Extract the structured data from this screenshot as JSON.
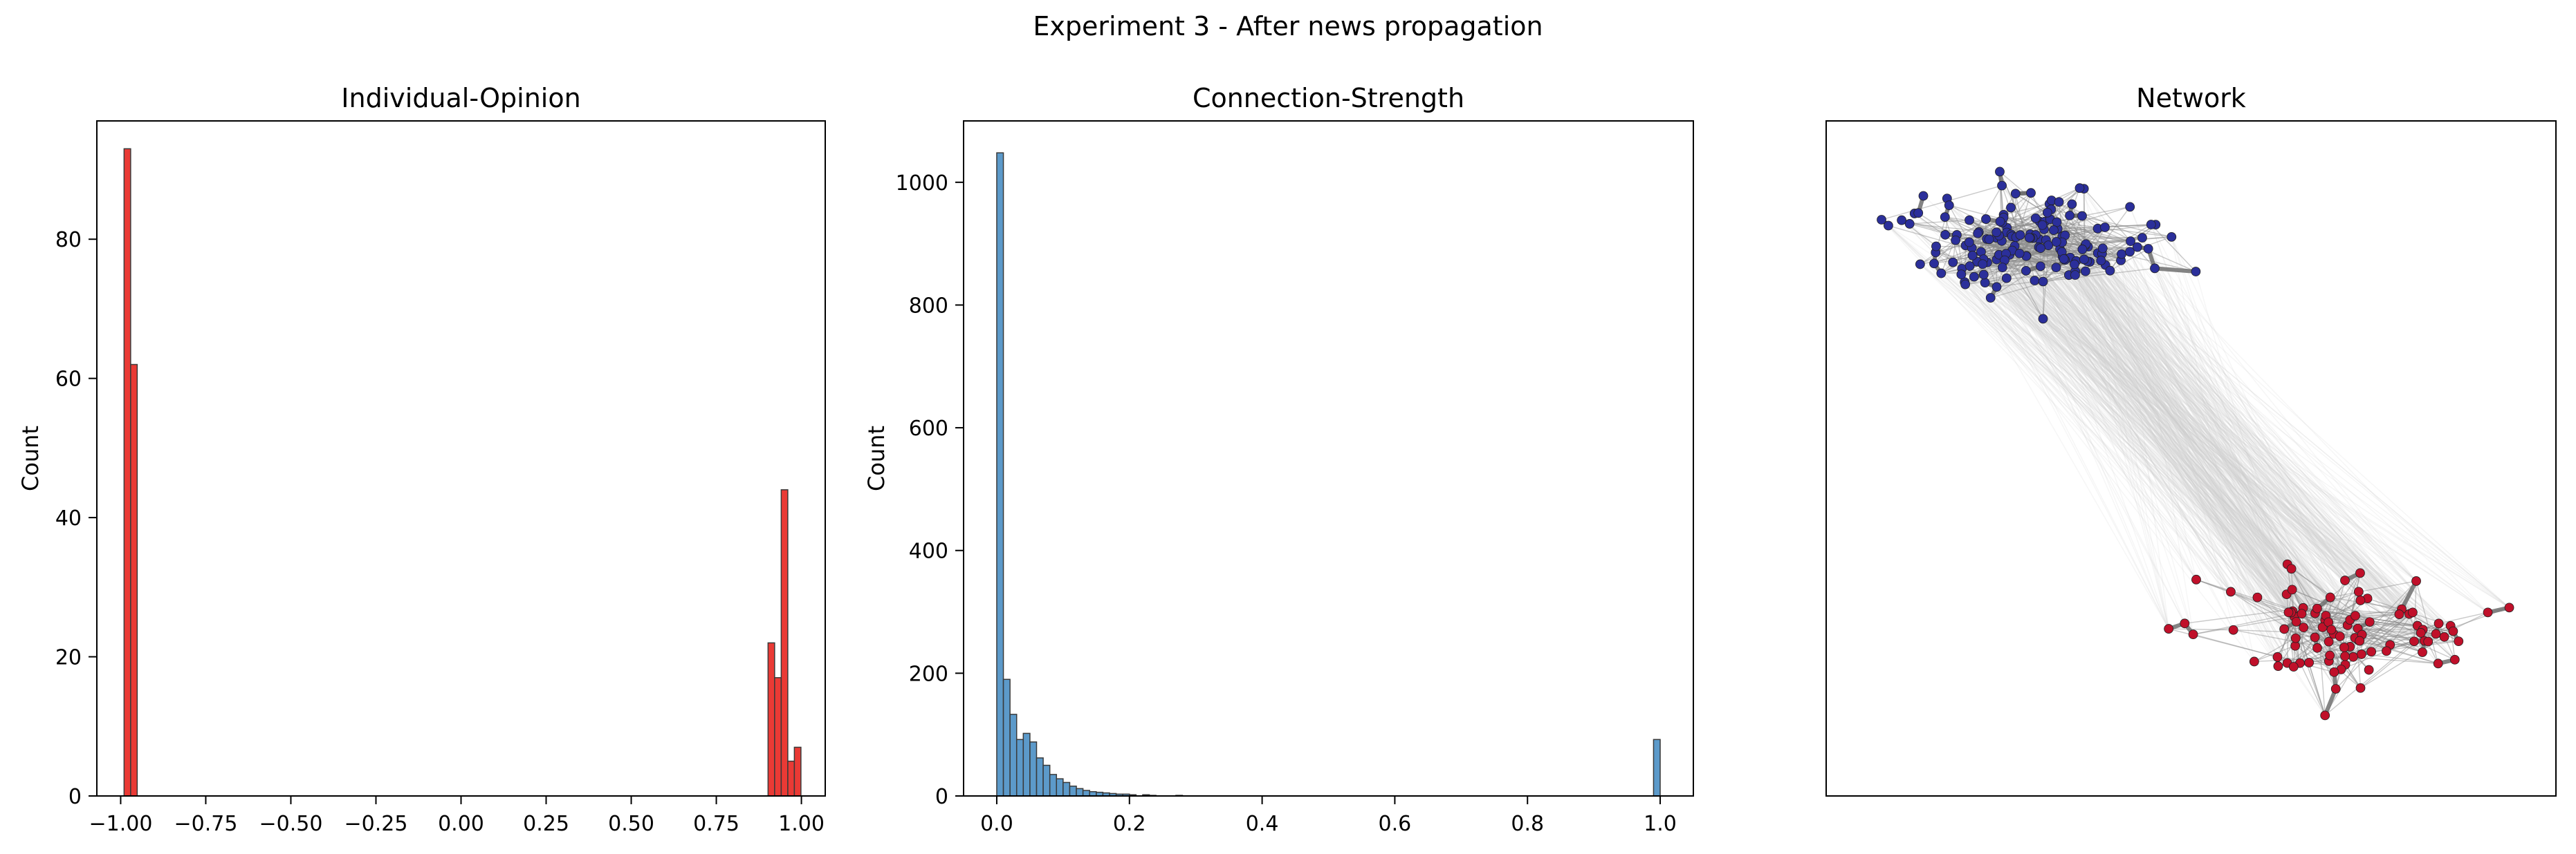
{
  "figure": {
    "title": "Experiment 3 - After news propagation"
  },
  "chart_data": [
    {
      "type": "bar",
      "title": "Individual-Opinion",
      "xlabel": "",
      "ylabel": "Count",
      "color": "#e8251f",
      "xlim": [
        -1.07,
        1.07
      ],
      "ylim": [
        0,
        97
      ],
      "xticks": [
        -1.0,
        -0.75,
        -0.5,
        -0.25,
        0.0,
        0.25,
        0.5,
        0.75,
        1.0
      ],
      "xtick_labels": [
        "−1.00",
        "−0.75",
        "−0.50",
        "−0.25",
        "0.00",
        "0.25",
        "0.50",
        "0.75",
        "1.00"
      ],
      "yticks": [
        0,
        20,
        40,
        60,
        80
      ],
      "ytick_labels": [
        "0",
        "20",
        "40",
        "60",
        "80"
      ],
      "bin_width": 0.0193,
      "bins": [
        {
          "x0": -0.99,
          "count": 93
        },
        {
          "x0": -0.9707,
          "count": 62
        },
        {
          "x0": 0.902,
          "count": 22
        },
        {
          "x0": 0.9213,
          "count": 17
        },
        {
          "x0": 0.9407,
          "count": 44
        },
        {
          "x0": 0.96,
          "count": 5
        },
        {
          "x0": 0.9793,
          "count": 7
        }
      ]
    },
    {
      "type": "bar",
      "title": "Connection-Strength",
      "xlabel": "",
      "ylabel": "Count",
      "color": "#4a8fc4",
      "xlim": [
        -0.05,
        1.05
      ],
      "ylim": [
        0,
        1100
      ],
      "xticks": [
        0.0,
        0.2,
        0.4,
        0.6,
        0.8,
        1.0
      ],
      "xtick_labels": [
        "0.0",
        "0.2",
        "0.4",
        "0.6",
        "0.8",
        "1.0"
      ],
      "yticks": [
        0,
        200,
        400,
        600,
        800,
        1000
      ],
      "ytick_labels": [
        "0",
        "200",
        "400",
        "600",
        "800",
        "1000"
      ],
      "bin_width": 0.01,
      "bins": [
        {
          "x0": 0.0,
          "count": 1048
        },
        {
          "x0": 0.01,
          "count": 190
        },
        {
          "x0": 0.02,
          "count": 133
        },
        {
          "x0": 0.03,
          "count": 92
        },
        {
          "x0": 0.04,
          "count": 102
        },
        {
          "x0": 0.05,
          "count": 88
        },
        {
          "x0": 0.06,
          "count": 62
        },
        {
          "x0": 0.07,
          "count": 50
        },
        {
          "x0": 0.08,
          "count": 35
        },
        {
          "x0": 0.09,
          "count": 28
        },
        {
          "x0": 0.1,
          "count": 22
        },
        {
          "x0": 0.11,
          "count": 16
        },
        {
          "x0": 0.12,
          "count": 12
        },
        {
          "x0": 0.13,
          "count": 9
        },
        {
          "x0": 0.14,
          "count": 7
        },
        {
          "x0": 0.15,
          "count": 6
        },
        {
          "x0": 0.16,
          "count": 5
        },
        {
          "x0": 0.17,
          "count": 4
        },
        {
          "x0": 0.18,
          "count": 3
        },
        {
          "x0": 0.19,
          "count": 3
        },
        {
          "x0": 0.2,
          "count": 2
        },
        {
          "x0": 0.22,
          "count": 2
        },
        {
          "x0": 0.23,
          "count": 1
        },
        {
          "x0": 0.27,
          "count": 1
        },
        {
          "x0": 0.99,
          "count": 92
        }
      ]
    },
    {
      "type": "network",
      "title": "Network",
      "xlabel": "",
      "ylabel": "",
      "node_colors": {
        "left_cluster": "#2b2f9a",
        "right_cluster": "#c0102a"
      },
      "edge_color": "#777777",
      "xlim": [
        0,
        100
      ],
      "ylim": [
        0,
        100
      ],
      "clusters": [
        {
          "color": "#2b2f9a",
          "center": [
            28,
            82
          ],
          "spread": [
            15,
            7
          ],
          "count": 155
        },
        {
          "color": "#c0102a",
          "center": [
            71,
            24
          ],
          "spread": [
            15,
            8
          ],
          "count": 95
        }
      ]
    }
  ]
}
